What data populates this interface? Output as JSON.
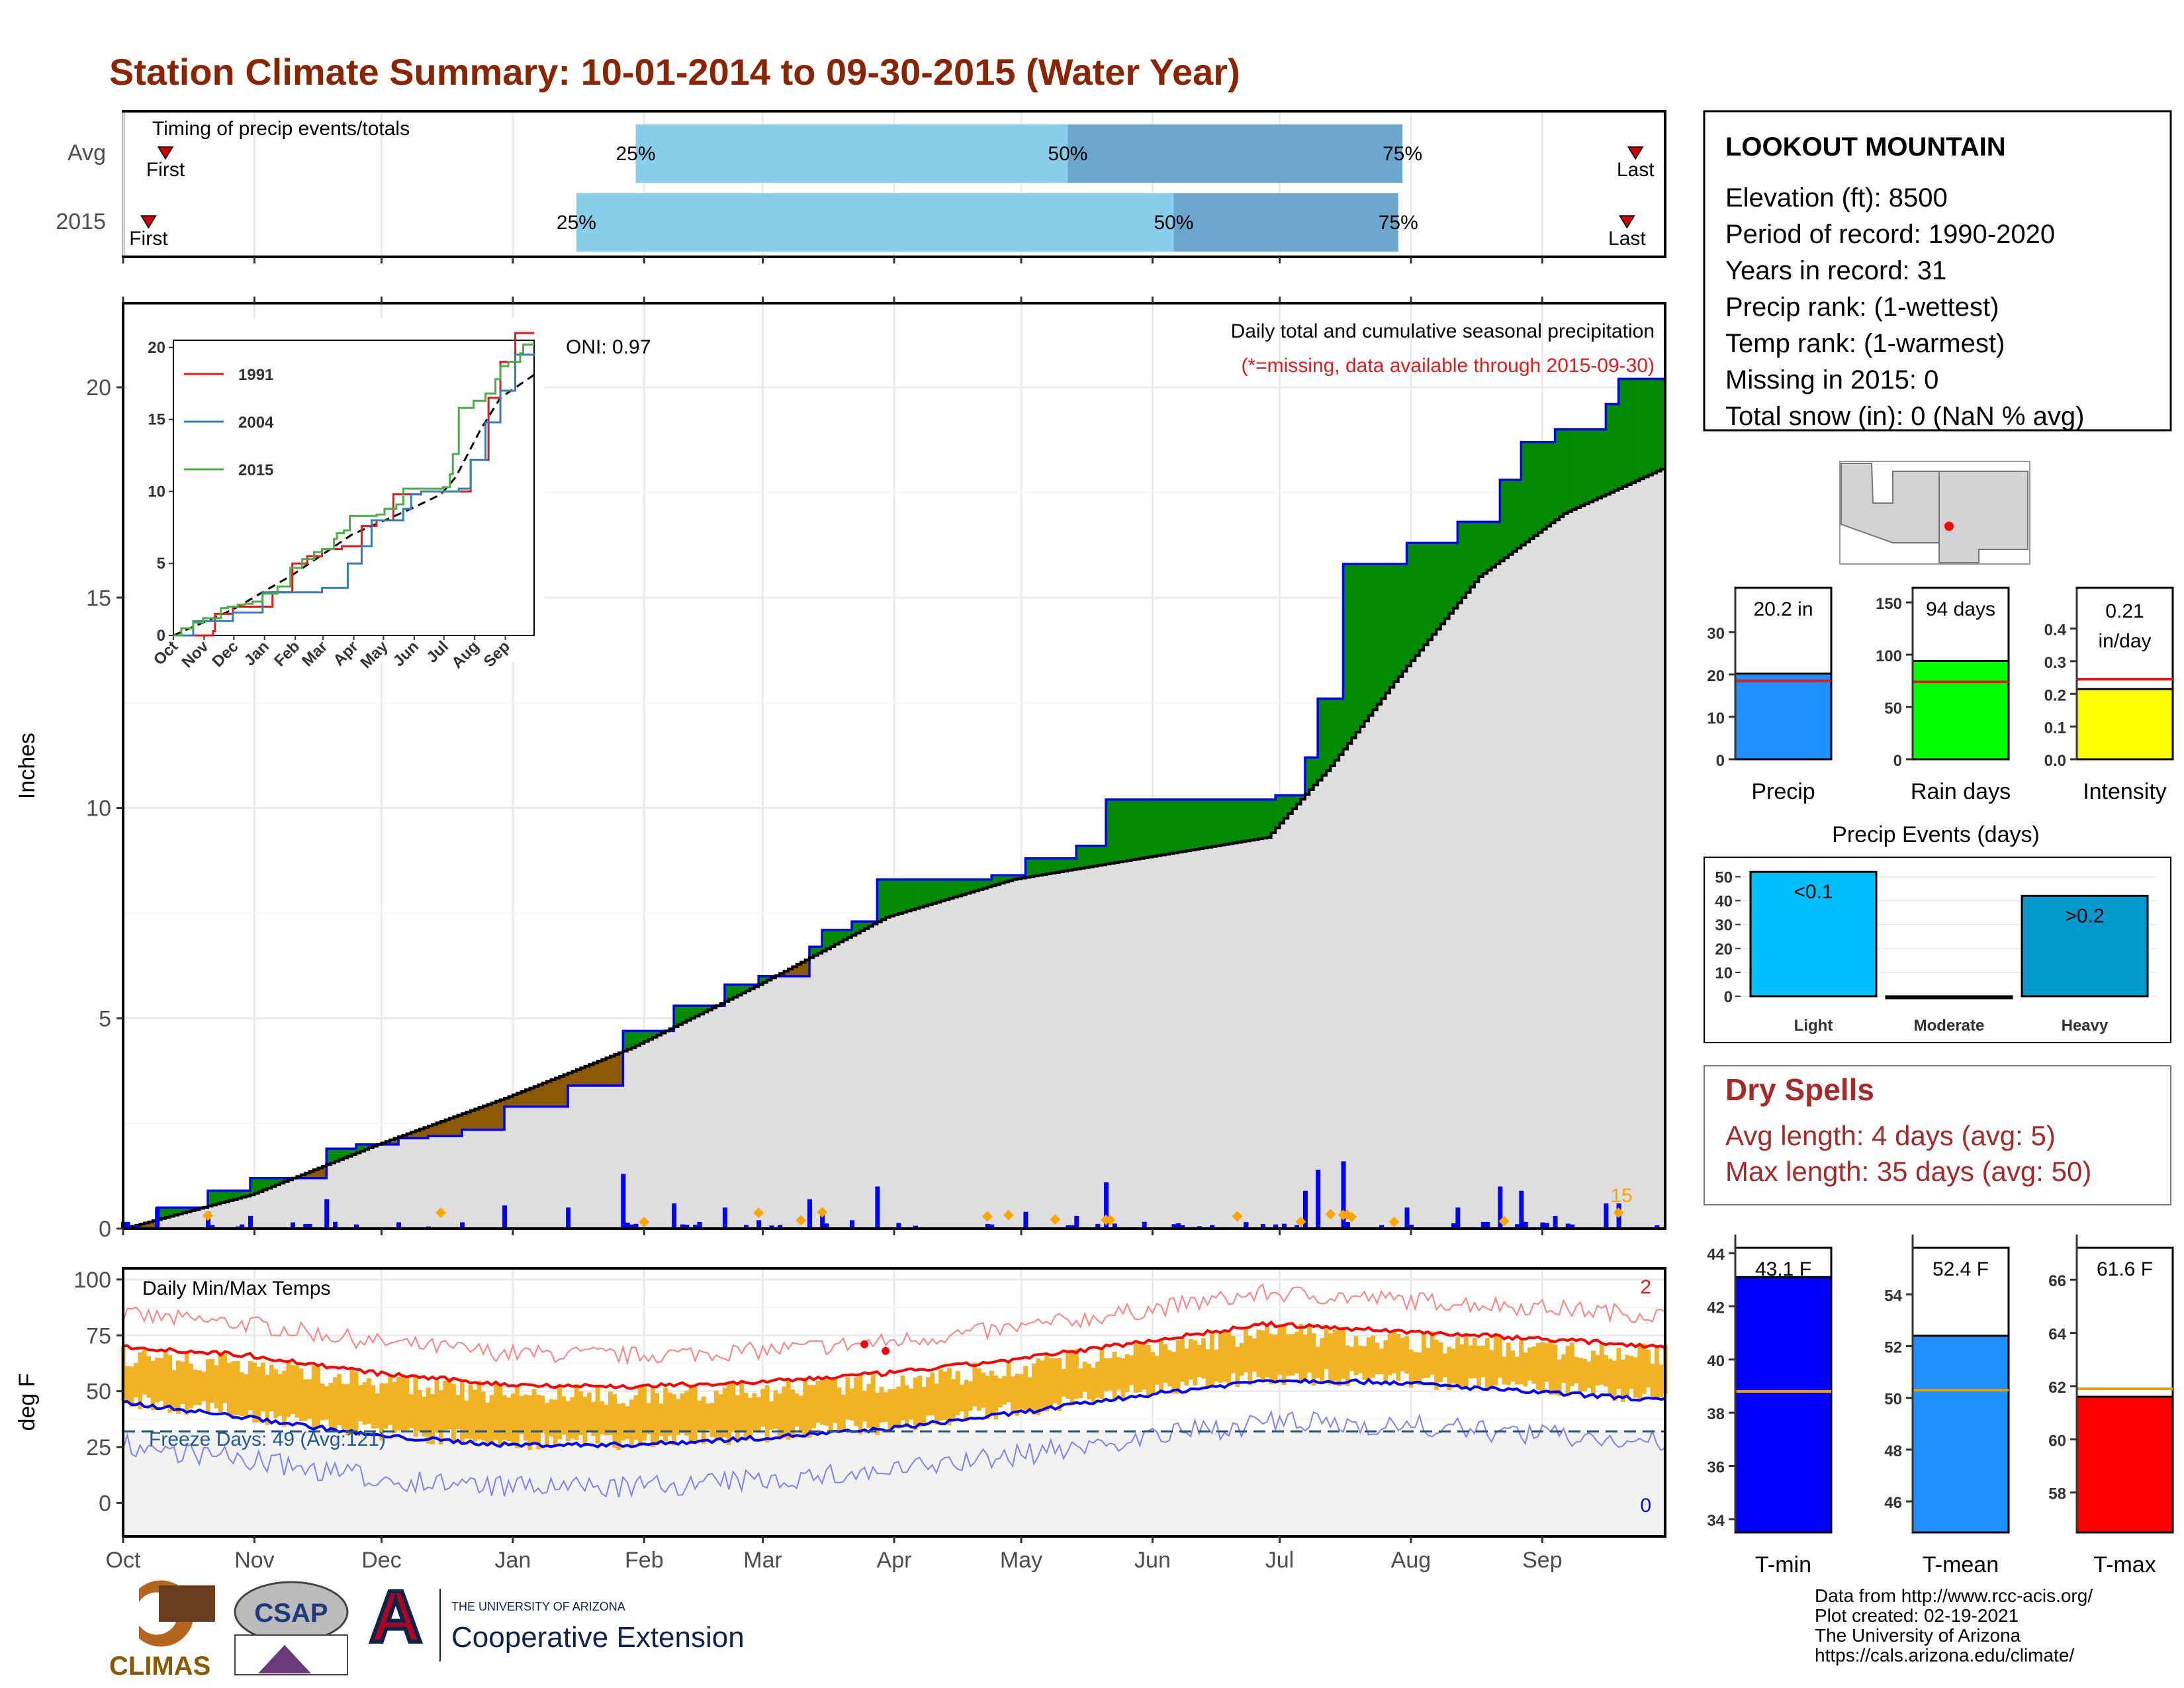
{
  "title": "Station Climate Summary: 10-01-2014 to 09-30-2015 (Water Year)",
  "colors": {
    "title": "#8b2500",
    "accent_red": "#e31a1c",
    "precip_blue": "#1e90ff",
    "light_blue": "#87ceeb",
    "mid_blue": "#6ca6cd",
    "green": "#008b00",
    "brown": "#8b5a00",
    "gold": "#f0b323"
  },
  "months": [
    "Oct",
    "Nov",
    "Dec",
    "Jan",
    "Feb",
    "Mar",
    "Apr",
    "May",
    "Jun",
    "Jul",
    "Aug",
    "Sep"
  ],
  "timing": {
    "title": "Timing of precip events/totals",
    "rows": [
      {
        "label": "Avg",
        "first": "First",
        "last": "Last",
        "p25": "25%",
        "p50": "50%",
        "p75": "75%",
        "first_day": 10,
        "p25_day": 121,
        "p50_day": 223,
        "p75_day": 302,
        "last_day": 357
      },
      {
        "label": "2015",
        "first": "First",
        "last": "Last",
        "p25": "25%",
        "p50": "50%",
        "p75": "75%",
        "first_day": 6,
        "p25_day": 107,
        "p50_day": 248,
        "p75_day": 301,
        "last_day": 355
      }
    ]
  },
  "precip": {
    "ylabel": "Inches",
    "title_line1": "Daily total and cumulative seasonal precipitation",
    "title_line2": "(*=missing, data available through 2015-09-30)",
    "oni": "ONI: 0.97",
    "count_label": "15",
    "y_ticks": [
      "0",
      "5",
      "10",
      "15",
      "20"
    ]
  },
  "inset": {
    "legend": [
      "1991",
      "2004",
      "2015"
    ],
    "y_ticks": [
      "0",
      "5",
      "10",
      "15",
      "20"
    ],
    "x_ticks": [
      "Oct",
      "Nov",
      "Dec",
      "Jan",
      "Feb",
      "Mar",
      "Apr",
      "May",
      "Jun",
      "Jul",
      "Aug",
      "Sep"
    ]
  },
  "temps": {
    "ylabel": "deg F",
    "title": "Daily Min/Max Temps",
    "freeze": "Freeze Days: 49 (Avg:121)",
    "max_count": "2",
    "min_count": "0",
    "y_ticks": [
      "0",
      "25",
      "50",
      "75",
      "100"
    ]
  },
  "station": {
    "name": "LOOKOUT MOUNTAIN",
    "lines": [
      "Elevation (ft): 8500",
      "Period of record: 1990-2020",
      "Years in record: 31",
      "Precip rank:  (1-wettest)",
      "Temp rank:  (1-warmest)",
      "Missing in 2015: 0",
      "Total snow (in): 0 (NaN % avg)"
    ]
  },
  "bars_precip": [
    {
      "label": "Precip",
      "value_text": "20.2 in",
      "value": 20.2,
      "avg": 18.5,
      "ymax": 37,
      "ticks": [
        "0",
        "10",
        "20",
        "30"
      ],
      "tick_vals": [
        0,
        10,
        20,
        30
      ],
      "color": "#1e90ff"
    },
    {
      "label": "Rain days",
      "value_text": "94 days",
      "value": 94,
      "avg": 74,
      "ymax": 150,
      "ticks": [
        "0",
        "50",
        "100",
        "150"
      ],
      "tick_vals": [
        0,
        50,
        100,
        150
      ],
      "color": "#00ff00"
    },
    {
      "label": "Intensity",
      "value_text": "0.21",
      "value_text2": "in/day",
      "value": 0.215,
      "avg": 0.245,
      "ymax": 0.48,
      "ticks": [
        "0.0",
        "0.1",
        "0.2",
        "0.3",
        "0.4"
      ],
      "tick_vals": [
        0,
        0.1,
        0.2,
        0.3,
        0.4
      ],
      "color": "#ffff00"
    }
  ],
  "events": {
    "title": "Precip Events (days)",
    "categories": [
      "Light",
      "Moderate",
      "Heavy"
    ],
    "values": [
      52,
      0,
      42
    ],
    "labels": [
      "<0.1",
      "",
      ">0.2"
    ],
    "ticks": [
      "0",
      "10",
      "20",
      "30",
      "40",
      "50"
    ]
  },
  "dry": {
    "title": "Dry Spells",
    "avg": "Avg length: 4 days (avg: 5)",
    "max": "Max length: 35 days (avg: 50)"
  },
  "bars_temp": [
    {
      "label": "T-min",
      "value_text": "43.1 F",
      "value": 43.1,
      "avg": 38.8,
      "ymin": 33.5,
      "ymax": 44.2,
      "ticks": [
        "34",
        "36",
        "38",
        "40",
        "42",
        "44"
      ],
      "tick_vals": [
        34,
        36,
        38,
        40,
        42,
        44
      ],
      "color": "#0000ff"
    },
    {
      "label": "T-mean",
      "value_text": "52.4 F",
      "value": 52.4,
      "avg": 50.3,
      "ymin": 44.8,
      "ymax": 55.8,
      "ticks": [
        "46",
        "48",
        "50",
        "52",
        "54"
      ],
      "tick_vals": [
        46,
        48,
        50,
        52,
        54
      ],
      "color": "#1e90ff"
    },
    {
      "label": "T-max",
      "value_text": "61.6 F",
      "value": 61.6,
      "avg": 61.9,
      "ymin": 56.5,
      "ymax": 67.2,
      "ticks": [
        "58",
        "60",
        "62",
        "64",
        "66"
      ],
      "tick_vals": [
        58,
        60,
        62,
        64,
        66
      ],
      "color": "#ff0000"
    }
  ],
  "chart_data": [
    {
      "type": "line",
      "title": "Daily total and cumulative seasonal precipitation",
      "ylabel": "Inches",
      "ylim": [
        0,
        22
      ],
      "series": [
        {
          "name": "2015",
          "x": [
            0,
            8,
            20,
            30,
            38,
            48,
            55,
            65,
            72,
            80,
            90,
            105,
            118,
            130,
            142,
            150,
            162,
            165,
            172,
            178,
            185,
            195,
            205,
            213,
            225,
            232,
            238,
            250,
            262,
            272,
            279,
            282,
            288,
            300,
            303,
            315,
            325,
            330,
            335,
            338,
            350,
            353,
            364
          ],
          "y": [
            0,
            0.5,
            0.9,
            1.2,
            1.2,
            1.9,
            2.0,
            2.15,
            2.2,
            2.35,
            2.9,
            3.4,
            4.7,
            5.3,
            5.8,
            6.0,
            6.7,
            7.1,
            7.3,
            8.3,
            8.3,
            8.3,
            8.4,
            8.8,
            9.1,
            10.2,
            10.2,
            10.2,
            10.2,
            10.3,
            11.2,
            12.6,
            15.8,
            15.8,
            16.3,
            16.8,
            17.8,
            18.7,
            18.7,
            19.0,
            19.6,
            20.2,
            20.2
          ]
        },
        {
          "name": "Average",
          "x": [
            0,
            30,
            60,
            90,
            120,
            150,
            180,
            210,
            240,
            270,
            285,
            300,
            320,
            340,
            364
          ],
          "y": [
            0,
            0.8,
            2.0,
            3.1,
            4.3,
            5.8,
            7.4,
            8.3,
            8.8,
            9.3,
            11.0,
            13.0,
            15.5,
            17.0,
            18.1
          ]
        }
      ]
    },
    {
      "type": "line",
      "title": "Daily Min/Max Temps",
      "ylabel": "deg F",
      "ylim": [
        -15,
        105
      ],
      "series": [
        {
          "name": "Avg max",
          "x": [
            0,
            30,
            60,
            90,
            120,
            150,
            180,
            210,
            240,
            270,
            300,
            330,
            364
          ],
          "y": [
            70,
            66,
            58,
            53,
            52,
            54,
            58,
            64,
            72,
            80,
            77,
            74,
            70
          ]
        },
        {
          "name": "Avg min",
          "x": [
            0,
            30,
            60,
            90,
            120,
            150,
            180,
            210,
            240,
            270,
            300,
            330,
            364
          ],
          "y": [
            45,
            38,
            30,
            26,
            26,
            29,
            33,
            40,
            48,
            55,
            54,
            50,
            46
          ]
        }
      ]
    }
  ]
}
